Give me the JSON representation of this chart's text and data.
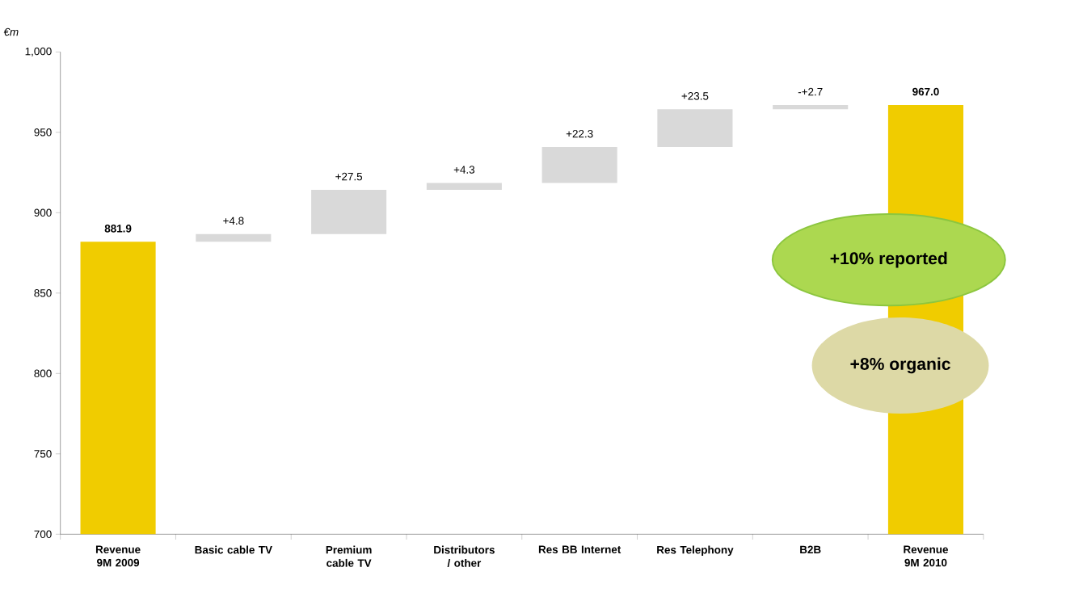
{
  "chart_data": {
    "type": "bar",
    "ylabel": "€m",
    "categories": [
      "Revenue 9M 2009",
      "Basic cable TV",
      "Premium cable TV",
      "Distributors / other",
      "Res BB Internet",
      "Res Telephony",
      "B2B",
      "Revenue 9M 2010"
    ],
    "values": [
      881.9,
      4.8,
      27.5,
      4.3,
      22.3,
      23.5,
      2.7,
      967.0
    ],
    "base": [
      null,
      881.9,
      886.7,
      914.2,
      918.5,
      940.8,
      964.3,
      null
    ],
    "colors": [
      "#f0cc00",
      "#d9d9d9",
      "#d9d9d9",
      "#d9d9d9",
      "#d9d9d9",
      "#d9d9d9",
      "#d9d9d9",
      "#f0cc00"
    ],
    "value_labels": [
      "881.9",
      "+4.8",
      "+27.5",
      "+4.3",
      "+22.3",
      "+23.5",
      "-+2.7",
      "967.0"
    ],
    "ylim": [
      700,
      1000
    ],
    "yticks": [
      700,
      750,
      800,
      850,
      900,
      950,
      {
        "value": 1000,
        "label": "1,000"
      }
    ],
    "grid": false,
    "annotations": [
      "+10% reported",
      "+8% organic"
    ]
  }
}
